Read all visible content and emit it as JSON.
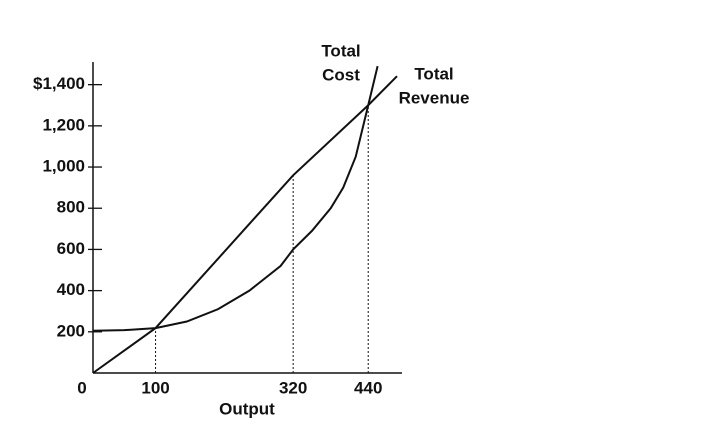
{
  "chart_data": {
    "type": "line",
    "x_label": "Output",
    "xlim": [
      0,
      494
    ],
    "ylim": [
      0,
      1510
    ],
    "xticks": [
      0,
      100,
      320,
      440
    ],
    "yticks": [
      {
        "value": 200,
        "label": "200"
      },
      {
        "value": 400,
        "label": "400"
      },
      {
        "value": 600,
        "label": "600"
      },
      {
        "value": 800,
        "label": "800"
      },
      {
        "value": 1000,
        "label": "1,000"
      },
      {
        "value": 1200,
        "label": "1,200"
      },
      {
        "value": 1400,
        "label": "$1,400"
      }
    ],
    "series": [
      {
        "label_lines": [
          "Total",
          "Cost"
        ],
        "color": "#111111",
        "x": [
          0,
          50,
          100,
          150,
          200,
          250,
          300,
          320,
          350,
          380,
          400,
          420,
          440,
          455
        ],
        "values": [
          205,
          208,
          218,
          250,
          310,
          400,
          520,
          600,
          690,
          800,
          900,
          1050,
          1300,
          1490
        ]
      },
      {
        "label_lines": [
          "Total",
          "Revenue"
        ],
        "color": "#111111",
        "x": [
          0,
          100,
          320,
          440,
          486
        ],
        "values": [
          0,
          218,
          960,
          1300,
          1441
        ]
      }
    ],
    "dropline_x": [
      100,
      320,
      440
    ]
  }
}
